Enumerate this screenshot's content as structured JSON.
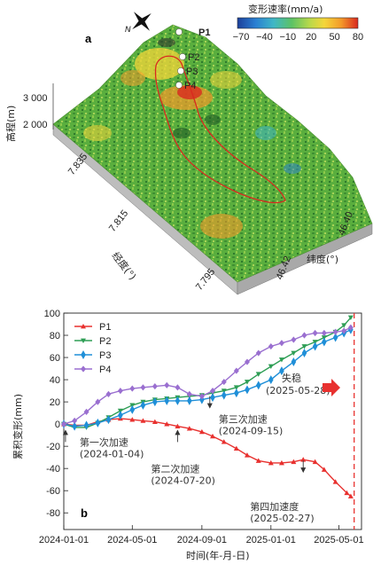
{
  "map": {
    "panel_label": "a",
    "colorbar_title": "变形速率(mm/a)",
    "colorbar_ticks": [
      "−70",
      "−40",
      "−10",
      "20",
      "50",
      "80"
    ],
    "colorbar_colors": [
      "#1c3f9a",
      "#2a7fd2",
      "#3fb7c6",
      "#5cc265",
      "#b9d84a",
      "#f4d63a",
      "#f39a2a",
      "#d9291f"
    ],
    "z_label": "高程(m)",
    "z_ticks": [
      "3 000",
      "2 000"
    ],
    "lon_label": "经度(°)",
    "lon_ticks": [
      "7.835",
      "7.815",
      "7.795"
    ],
    "lat_label": "纬度(°)",
    "lat_ticks": [
      "46.40",
      "46.42"
    ],
    "point_labels": [
      "P1",
      "P2",
      "P3",
      "P4"
    ],
    "compass_label": "N",
    "terrain_color": "#55ad3c",
    "boundary_color": "#d9291f"
  },
  "chart_data": {
    "type": "line",
    "panel_label": "b",
    "xlabel": "时间(年-月-日)",
    "ylabel": "累积变形(mm)",
    "x_ticks": [
      "2024-01-01",
      "2024-05-01",
      "2024-09-01",
      "2025-01-01",
      "2025-05-01"
    ],
    "xlim": [
      "2024-01-01",
      "2025-06-10"
    ],
    "ylim": [
      -95,
      100
    ],
    "y_ticks": [
      100,
      80,
      60,
      40,
      20,
      0,
      -20,
      -40,
      -60,
      -80
    ],
    "failure_date": "2025-05-28",
    "failure_label": "失稳",
    "failure_date_label": "(2025-05-28)",
    "series": [
      {
        "name": "P1",
        "color": "#e8312f",
        "marker": "triangle-up",
        "points": [
          [
            "2024-01-01",
            0
          ],
          [
            "2024-01-20",
            -1
          ],
          [
            "2024-02-10",
            -1
          ],
          [
            "2024-03-01",
            2
          ],
          [
            "2024-03-20",
            4
          ],
          [
            "2024-04-10",
            5
          ],
          [
            "2024-05-01",
            4
          ],
          [
            "2024-05-20",
            3
          ],
          [
            "2024-06-10",
            2
          ],
          [
            "2024-07-01",
            0
          ],
          [
            "2024-07-20",
            -2
          ],
          [
            "2024-08-10",
            -4
          ],
          [
            "2024-09-01",
            -7
          ],
          [
            "2024-09-20",
            -11
          ],
          [
            "2024-10-10",
            -16
          ],
          [
            "2024-11-01",
            -22
          ],
          [
            "2024-11-20",
            -28
          ],
          [
            "2024-12-10",
            -33
          ],
          [
            "2025-01-01",
            -35
          ],
          [
            "2025-01-20",
            -35
          ],
          [
            "2025-02-10",
            -34
          ],
          [
            "2025-02-27",
            -32
          ],
          [
            "2025-03-20",
            -34
          ],
          [
            "2025-04-05",
            -41
          ],
          [
            "2025-04-25",
            -52
          ],
          [
            "2025-05-15",
            -62
          ],
          [
            "2025-05-22",
            -65
          ]
        ]
      },
      {
        "name": "P2",
        "color": "#2e9e55",
        "marker": "triangle-down",
        "points": [
          [
            "2024-01-01",
            0
          ],
          [
            "2024-01-20",
            -3
          ],
          [
            "2024-02-10",
            -3
          ],
          [
            "2024-03-01",
            1
          ],
          [
            "2024-03-20",
            6
          ],
          [
            "2024-04-10",
            12
          ],
          [
            "2024-05-01",
            17
          ],
          [
            "2024-05-20",
            20
          ],
          [
            "2024-06-10",
            22
          ],
          [
            "2024-07-01",
            23
          ],
          [
            "2024-07-20",
            24
          ],
          [
            "2024-08-10",
            25
          ],
          [
            "2024-09-01",
            26
          ],
          [
            "2024-09-20",
            28
          ],
          [
            "2024-10-10",
            30
          ],
          [
            "2024-11-01",
            33
          ],
          [
            "2024-11-20",
            38
          ],
          [
            "2024-12-10",
            45
          ],
          [
            "2025-01-01",
            52
          ],
          [
            "2025-01-20",
            58
          ],
          [
            "2025-02-10",
            64
          ],
          [
            "2025-03-01",
            70
          ],
          [
            "2025-03-20",
            74
          ],
          [
            "2025-04-05",
            78
          ],
          [
            "2025-04-25",
            83
          ],
          [
            "2025-05-10",
            89
          ],
          [
            "2025-05-22",
            96
          ]
        ]
      },
      {
        "name": "P3",
        "color": "#1f8fd8",
        "marker": "diamond",
        "points": [
          [
            "2024-01-01",
            0
          ],
          [
            "2024-01-20",
            -2
          ],
          [
            "2024-02-10",
            -1
          ],
          [
            "2024-03-01",
            1
          ],
          [
            "2024-03-20",
            4
          ],
          [
            "2024-04-10",
            8
          ],
          [
            "2024-05-01",
            13
          ],
          [
            "2024-05-20",
            17
          ],
          [
            "2024-06-10",
            20
          ],
          [
            "2024-07-01",
            21
          ],
          [
            "2024-07-20",
            21
          ],
          [
            "2024-08-10",
            21
          ],
          [
            "2024-09-01",
            22
          ],
          [
            "2024-09-20",
            24
          ],
          [
            "2024-10-10",
            26
          ],
          [
            "2024-11-01",
            28
          ],
          [
            "2024-11-20",
            31
          ],
          [
            "2024-12-10",
            35
          ],
          [
            "2025-01-01",
            40
          ],
          [
            "2025-01-20",
            48
          ],
          [
            "2025-02-10",
            56
          ],
          [
            "2025-03-01",
            64
          ],
          [
            "2025-03-20",
            70
          ],
          [
            "2025-04-05",
            74
          ],
          [
            "2025-04-25",
            78
          ],
          [
            "2025-05-10",
            82
          ],
          [
            "2025-05-22",
            85
          ]
        ]
      },
      {
        "name": "P4",
        "color": "#9a6fd0",
        "marker": "diamond-small",
        "points": [
          [
            "2024-01-01",
            0
          ],
          [
            "2024-01-20",
            3
          ],
          [
            "2024-02-10",
            11
          ],
          [
            "2024-03-01",
            20
          ],
          [
            "2024-03-20",
            27
          ],
          [
            "2024-04-10",
            30
          ],
          [
            "2024-05-01",
            32
          ],
          [
            "2024-05-20",
            33
          ],
          [
            "2024-06-10",
            34
          ],
          [
            "2024-07-01",
            35
          ],
          [
            "2024-07-20",
            33
          ],
          [
            "2024-08-10",
            27
          ],
          [
            "2024-09-01",
            25
          ],
          [
            "2024-09-20",
            30
          ],
          [
            "2024-10-10",
            38
          ],
          [
            "2024-11-01",
            48
          ],
          [
            "2024-11-20",
            56
          ],
          [
            "2024-12-10",
            64
          ],
          [
            "2025-01-01",
            70
          ],
          [
            "2025-01-20",
            73
          ],
          [
            "2025-02-10",
            76
          ],
          [
            "2025-03-01",
            80
          ],
          [
            "2025-03-20",
            82
          ],
          [
            "2025-04-05",
            82
          ],
          [
            "2025-04-25",
            83
          ],
          [
            "2025-05-10",
            84
          ],
          [
            "2025-05-22",
            87
          ]
        ]
      }
    ],
    "annotations": [
      {
        "date": "2024-01-04",
        "value": -5,
        "label": "第一次加速",
        "date_label": "(2024-01-04)"
      },
      {
        "date": "2024-07-20",
        "value": -5,
        "label": "第二次加速",
        "date_label": "(2024-07-20)"
      },
      {
        "date": "2024-09-15",
        "value": 14,
        "label": "第三次加速",
        "date_label": "(2024-09-15)"
      },
      {
        "date": "2025-02-27",
        "value": -44,
        "label": "第四加速度",
        "date_label": "(2025-02-27)"
      }
    ]
  }
}
